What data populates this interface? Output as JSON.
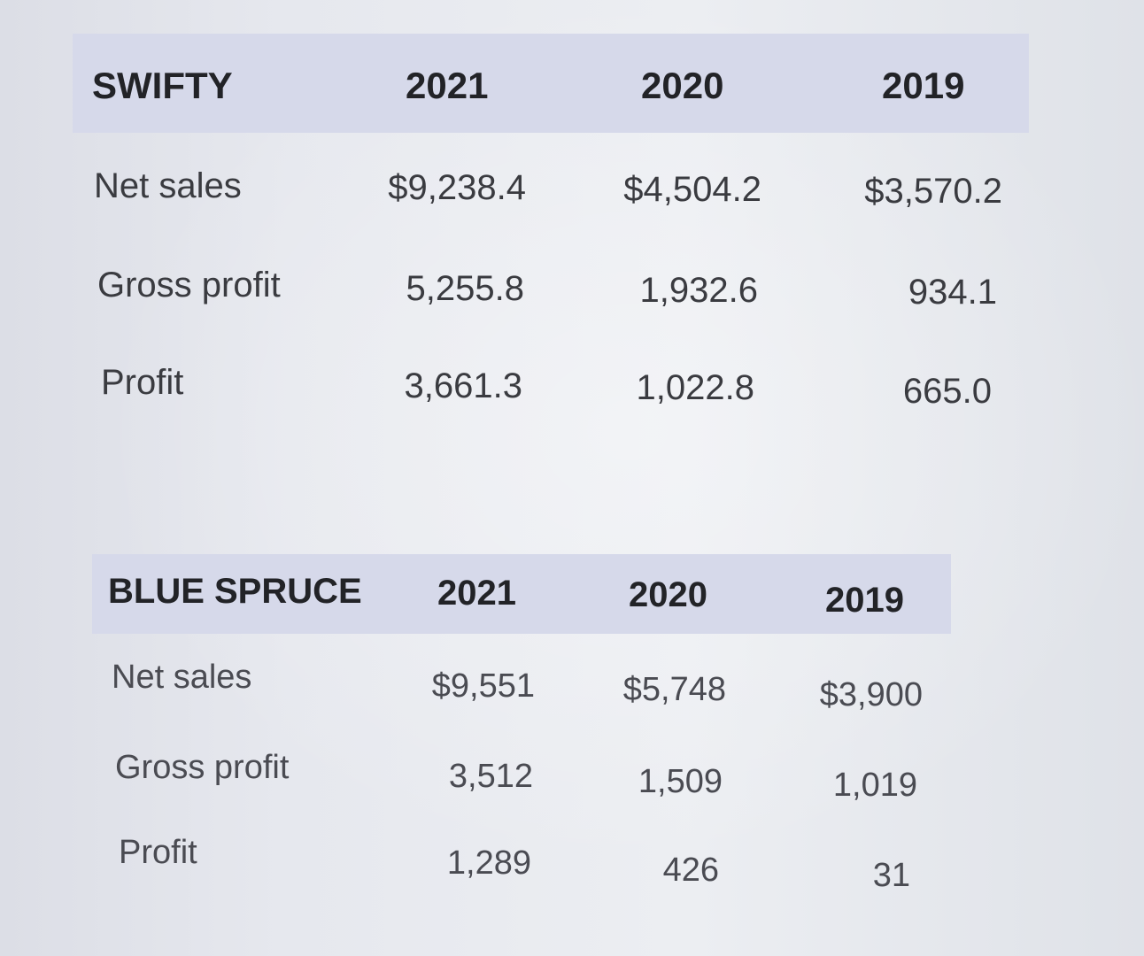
{
  "tables": [
    {
      "company": "SWIFTY",
      "years": [
        "2021",
        "2020",
        "2019"
      ],
      "rows": [
        {
          "label": "Net sales",
          "values": [
            "$9,238.4",
            "$4,504.2",
            "$3,570.2"
          ]
        },
        {
          "label": "Gross profit",
          "values": [
            "5,255.8",
            "1,932.6",
            "934.1"
          ]
        },
        {
          "label": "Profit",
          "values": [
            "3,661.3",
            "1,022.8",
            "665.0"
          ]
        }
      ]
    },
    {
      "company": "BLUE SPRUCE",
      "years": [
        "2021",
        "2020",
        "2019"
      ],
      "rows": [
        {
          "label": "Net sales",
          "values": [
            "$9,551",
            "$5,748",
            "$3,900"
          ]
        },
        {
          "label": "Gross profit",
          "values": [
            "3,512",
            "1,509",
            "1,019"
          ]
        },
        {
          "label": "Profit",
          "values": [
            "1,289",
            "426",
            "31"
          ]
        }
      ]
    }
  ]
}
